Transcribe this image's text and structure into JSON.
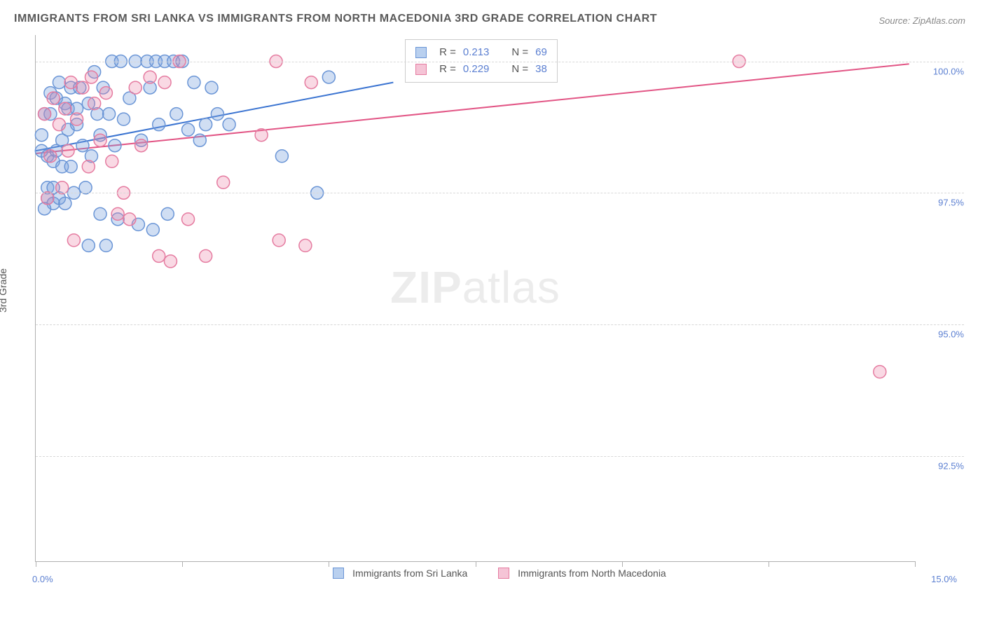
{
  "title": "IMMIGRANTS FROM SRI LANKA VS IMMIGRANTS FROM NORTH MACEDONIA 3RD GRADE CORRELATION CHART",
  "source": "Source: ZipAtlas.com",
  "y_axis_label": "3rd Grade",
  "watermark_bold": "ZIP",
  "watermark_rest": "atlas",
  "chart": {
    "type": "scatter",
    "xlim": [
      0,
      15
    ],
    "ylim": [
      90.5,
      100.5
    ],
    "x_ticks": [
      0,
      2.5,
      5.0,
      7.5,
      10.0,
      12.5,
      15.0
    ],
    "x_tick_labels_shown": {
      "0": "0.0%",
      "15": "15.0%"
    },
    "y_ticks": [
      92.5,
      95.0,
      97.5,
      100.0
    ],
    "y_tick_labels": [
      "92.5%",
      "95.0%",
      "97.5%",
      "100.0%"
    ],
    "grid_color": "#d8d8d8",
    "background_color": "#ffffff",
    "marker_radius": 9,
    "marker_stroke_width": 1.5,
    "line_width": 2,
    "series": [
      {
        "name": "Immigrants from Sri Lanka",
        "fill_color": "rgba(120,160,220,0.35)",
        "stroke_color": "#6a95d6",
        "line_color": "#3b74d1",
        "swatch_fill": "#b9d0ef",
        "swatch_border": "#6a95d6",
        "R": "0.213",
        "N": "69",
        "trend": {
          "x1": 0,
          "y1": 98.3,
          "x2": 6.1,
          "y2": 99.6
        },
        "points": [
          [
            0.1,
            98.3
          ],
          [
            0.1,
            98.6
          ],
          [
            0.15,
            99.0
          ],
          [
            0.2,
            97.4
          ],
          [
            0.2,
            97.6
          ],
          [
            0.2,
            98.2
          ],
          [
            0.25,
            99.4
          ],
          [
            0.25,
            99.0
          ],
          [
            0.3,
            97.3
          ],
          [
            0.3,
            97.6
          ],
          [
            0.3,
            98.1
          ],
          [
            0.35,
            98.3
          ],
          [
            0.35,
            99.3
          ],
          [
            0.4,
            99.6
          ],
          [
            0.4,
            97.4
          ],
          [
            0.45,
            98.0
          ],
          [
            0.45,
            98.5
          ],
          [
            0.5,
            97.3
          ],
          [
            0.5,
            99.2
          ],
          [
            0.55,
            98.7
          ],
          [
            0.55,
            99.1
          ],
          [
            0.6,
            98.0
          ],
          [
            0.6,
            99.5
          ],
          [
            0.65,
            97.5
          ],
          [
            0.7,
            98.8
          ],
          [
            0.7,
            99.1
          ],
          [
            0.75,
            99.5
          ],
          [
            0.8,
            98.4
          ],
          [
            0.85,
            97.6
          ],
          [
            0.9,
            99.2
          ],
          [
            0.95,
            98.2
          ],
          [
            1.0,
            99.8
          ],
          [
            1.05,
            99.0
          ],
          [
            1.1,
            98.6
          ],
          [
            1.1,
            97.1
          ],
          [
            1.15,
            99.5
          ],
          [
            1.2,
            96.5
          ],
          [
            1.25,
            99.0
          ],
          [
            1.3,
            100.0
          ],
          [
            1.35,
            98.4
          ],
          [
            1.4,
            97.0
          ],
          [
            1.45,
            100.0
          ],
          [
            1.5,
            98.9
          ],
          [
            1.6,
            99.3
          ],
          [
            1.7,
            100.0
          ],
          [
            1.75,
            96.9
          ],
          [
            1.8,
            98.5
          ],
          [
            1.9,
            100.0
          ],
          [
            1.95,
            99.5
          ],
          [
            2.0,
            96.8
          ],
          [
            2.05,
            100.0
          ],
          [
            2.1,
            98.8
          ],
          [
            2.2,
            100.0
          ],
          [
            2.25,
            97.1
          ],
          [
            2.35,
            100.0
          ],
          [
            2.4,
            99.0
          ],
          [
            2.5,
            100.0
          ],
          [
            2.6,
            98.7
          ],
          [
            2.7,
            99.6
          ],
          [
            2.9,
            98.8
          ],
          [
            3.0,
            99.5
          ],
          [
            3.1,
            99.0
          ],
          [
            3.3,
            98.8
          ],
          [
            4.2,
            98.2
          ],
          [
            4.8,
            97.5
          ],
          [
            5.0,
            99.7
          ],
          [
            2.8,
            98.5
          ],
          [
            0.15,
            97.2
          ],
          [
            0.9,
            96.5
          ]
        ]
      },
      {
        "name": "Immigrants from North Macedonia",
        "fill_color": "rgba(235,130,165,0.30)",
        "stroke_color": "#e57ba0",
        "line_color": "#e25585",
        "swatch_fill": "#f5c4d6",
        "swatch_border": "#e57ba0",
        "R": "0.229",
        "N": "38",
        "trend": {
          "x1": 0,
          "y1": 98.25,
          "x2": 14.9,
          "y2": 99.95
        },
        "points": [
          [
            0.15,
            99.0
          ],
          [
            0.2,
            97.4
          ],
          [
            0.25,
            98.2
          ],
          [
            0.3,
            99.3
          ],
          [
            0.4,
            98.8
          ],
          [
            0.45,
            97.6
          ],
          [
            0.5,
            99.1
          ],
          [
            0.55,
            98.3
          ],
          [
            0.6,
            99.6
          ],
          [
            0.65,
            96.6
          ],
          [
            0.7,
            98.9
          ],
          [
            0.8,
            99.5
          ],
          [
            0.9,
            98.0
          ],
          [
            0.95,
            99.7
          ],
          [
            1.0,
            99.2
          ],
          [
            1.1,
            98.5
          ],
          [
            1.2,
            99.4
          ],
          [
            1.3,
            98.1
          ],
          [
            1.4,
            97.1
          ],
          [
            1.5,
            97.5
          ],
          [
            1.6,
            97.0
          ],
          [
            1.7,
            99.5
          ],
          [
            1.8,
            98.4
          ],
          [
            1.95,
            99.7
          ],
          [
            2.1,
            96.3
          ],
          [
            2.2,
            99.6
          ],
          [
            2.3,
            96.2
          ],
          [
            2.45,
            100.0
          ],
          [
            2.6,
            97.0
          ],
          [
            2.9,
            96.3
          ],
          [
            3.2,
            97.7
          ],
          [
            3.85,
            98.6
          ],
          [
            4.1,
            100.0
          ],
          [
            4.15,
            96.6
          ],
          [
            4.6,
            96.5
          ],
          [
            4.7,
            99.6
          ],
          [
            12.0,
            100.0
          ],
          [
            14.4,
            94.1
          ]
        ]
      }
    ]
  },
  "stat_box": {
    "R_label": "R =",
    "N_label": "N ="
  },
  "legend_labels": [
    "Immigrants from Sri Lanka",
    "Immigrants from North Macedonia"
  ]
}
